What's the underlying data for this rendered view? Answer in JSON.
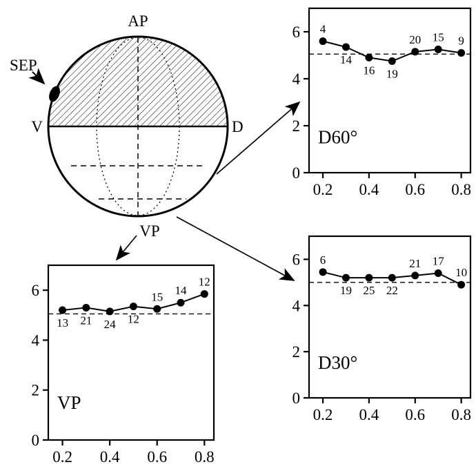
{
  "figure": {
    "background": "#ffffff",
    "ink": "#000000"
  },
  "diagram": {
    "label_top": "AP",
    "label_bottom": "VP",
    "label_left": "V",
    "label_right": "D",
    "label_sep": "SEP"
  },
  "chart_data": [
    {
      "id": "D60",
      "type": "line",
      "title": "D60°",
      "x": [
        0.2,
        0.3,
        0.4,
        0.5,
        0.6,
        0.7,
        0.8
      ],
      "values": [
        5.6,
        5.35,
        4.9,
        4.75,
        5.15,
        5.25,
        5.1
      ],
      "point_labels": [
        "4",
        "14",
        "16",
        "19",
        "20",
        "15",
        "9"
      ],
      "label_side": [
        "above",
        "below",
        "below",
        "below",
        "above",
        "above",
        "above"
      ],
      "baseline_y": 5.05,
      "xticks": [
        0.2,
        0.4,
        0.6,
        0.8
      ],
      "yticks": [
        0,
        2,
        4,
        6
      ],
      "xlim": [
        0.14,
        0.84
      ],
      "ylim": [
        0,
        7
      ],
      "grid": false,
      "marker": "filled-circle"
    },
    {
      "id": "D30",
      "type": "line",
      "title": "D30°",
      "x": [
        0.2,
        0.3,
        0.4,
        0.5,
        0.6,
        0.7,
        0.8
      ],
      "values": [
        5.45,
        5.2,
        5.2,
        5.2,
        5.3,
        5.4,
        4.9
      ],
      "point_labels": [
        "6",
        "19",
        "25",
        "22",
        "21",
        "17",
        "10"
      ],
      "label_side": [
        "above",
        "below",
        "below",
        "below",
        "above",
        "above",
        "above"
      ],
      "baseline_y": 5.0,
      "xticks": [
        0.2,
        0.4,
        0.6,
        0.8
      ],
      "yticks": [
        0,
        2,
        4,
        6
      ],
      "xlim": [
        0.14,
        0.84
      ],
      "ylim": [
        0,
        7
      ],
      "grid": false,
      "marker": "filled-circle"
    },
    {
      "id": "VP",
      "type": "line",
      "title": "VP",
      "x": [
        0.2,
        0.3,
        0.4,
        0.5,
        0.6,
        0.7,
        0.8
      ],
      "values": [
        5.2,
        5.3,
        5.15,
        5.35,
        5.25,
        5.5,
        5.85
      ],
      "point_labels": [
        "13",
        "21",
        "24",
        "12",
        "15",
        "14",
        "12"
      ],
      "label_side": [
        "below",
        "below",
        "below",
        "below",
        "above",
        "above",
        "above"
      ],
      "baseline_y": 5.05,
      "xticks": [
        0.2,
        0.4,
        0.6,
        0.8
      ],
      "yticks": [
        0,
        2,
        4,
        6
      ],
      "xlim": [
        0.14,
        0.84
      ],
      "ylim": [
        0,
        7
      ],
      "grid": false,
      "marker": "filled-circle"
    }
  ]
}
